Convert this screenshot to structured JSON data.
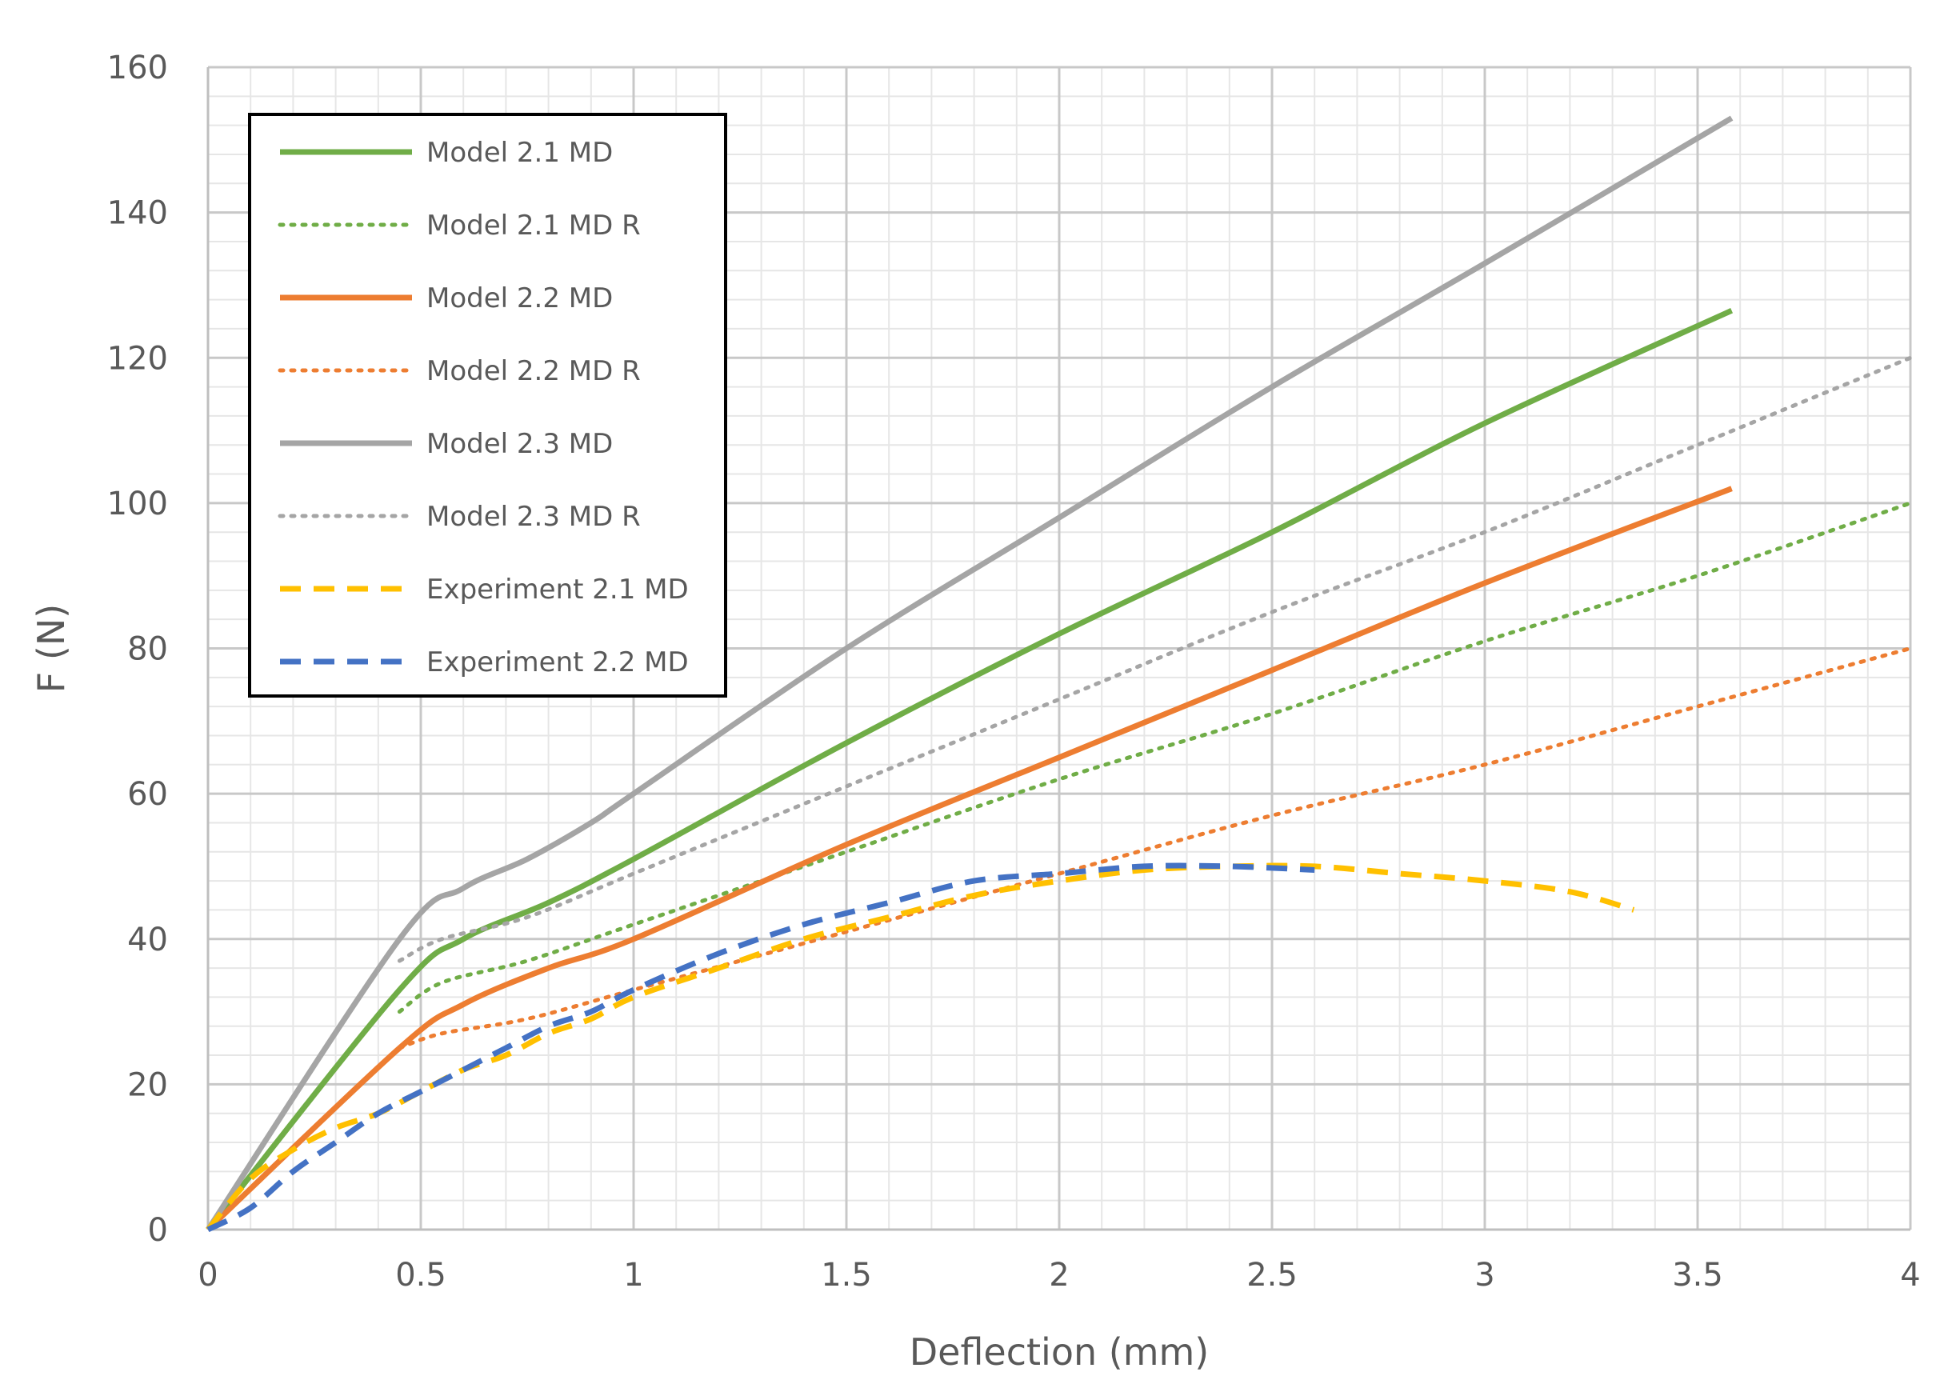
{
  "chart_data": {
    "type": "line",
    "title": "",
    "xlabel": "Deflection (mm)",
    "ylabel": "F (N)",
    "xlim": [
      0,
      4
    ],
    "ylim": [
      0,
      160
    ],
    "x_ticks": [
      0,
      0.5,
      1,
      1.5,
      2,
      2.5,
      3,
      3.5,
      4
    ],
    "x_tick_labels": [
      "0",
      "0.5",
      "1",
      "1.5",
      "2",
      "2.5",
      "3",
      "3.5",
      "4"
    ],
    "y_ticks": [
      0,
      20,
      40,
      60,
      80,
      100,
      120,
      140,
      160
    ],
    "y_tick_labels": [
      "0",
      "20",
      "40",
      "60",
      "80",
      "100",
      "120",
      "140",
      "160"
    ],
    "minor_x_step": 0.1,
    "minor_y_step": 4,
    "grid": true,
    "legend_position": "top-left",
    "series": [
      {
        "name": "Model 2.1 MD",
        "color": "#70ad47",
        "style": "solid",
        "x": [
          0,
          0.45,
          0.6,
          0.8,
          1.0,
          1.5,
          2.0,
          2.5,
          3.0,
          3.58
        ],
        "y": [
          0,
          33,
          40,
          45,
          51,
          67,
          82,
          96,
          111,
          126.5
        ]
      },
      {
        "name": "Model 2.1 MD R",
        "color": "#70ad47",
        "style": "dotted",
        "x": [
          0.45,
          0.55,
          0.75,
          1.0,
          1.5,
          2.0,
          2.5,
          3.0,
          3.5,
          4.0
        ],
        "y": [
          30,
          34,
          37,
          42,
          52,
          62,
          71,
          81,
          90,
          100
        ]
      },
      {
        "name": "Model 2.2 MD",
        "color": "#ed7d31",
        "style": "solid",
        "x": [
          0,
          0.45,
          0.6,
          0.8,
          1.0,
          1.5,
          2.0,
          2.5,
          3.0,
          3.58
        ],
        "y": [
          0,
          25,
          31,
          36,
          40,
          53,
          65,
          77,
          89,
          102
        ]
      },
      {
        "name": "Model 2.2 MD R",
        "color": "#ed7d31",
        "style": "dotted",
        "x": [
          0.45,
          0.55,
          0.75,
          1.0,
          1.5,
          2.0,
          2.5,
          3.0,
          3.5,
          4.0
        ],
        "y": [
          25,
          27,
          29,
          33,
          41,
          49,
          57,
          64,
          72,
          80
        ]
      },
      {
        "name": "Model 2.3 MD",
        "color": "#a5a5a5",
        "style": "solid",
        "x": [
          0,
          0.45,
          0.6,
          0.75,
          0.9,
          1.0,
          1.5,
          2.0,
          2.5,
          3.0,
          3.58
        ],
        "y": [
          0,
          40,
          47,
          51,
          56,
          60,
          80,
          98,
          116,
          133,
          153
        ]
      },
      {
        "name": "Model 2.3 MD R",
        "color": "#a5a5a5",
        "style": "dotted",
        "x": [
          0.45,
          0.55,
          0.75,
          1.0,
          1.5,
          2.0,
          2.5,
          3.0,
          3.5,
          4.0
        ],
        "y": [
          37,
          40,
          43,
          49,
          61,
          73,
          85,
          96,
          108,
          120
        ]
      },
      {
        "name": "Experiment 2.1 MD",
        "color": "#ffc000",
        "style": "dashed",
        "x": [
          0,
          0.1,
          0.2,
          0.3,
          0.4,
          0.5,
          0.6,
          0.7,
          0.8,
          0.9,
          1.0,
          1.2,
          1.4,
          1.6,
          1.8,
          2.0,
          2.2,
          2.4,
          2.6,
          2.8,
          3.0,
          3.2,
          3.35
        ],
        "y": [
          0,
          7,
          11,
          14,
          16,
          19,
          22,
          24,
          27,
          29,
          32,
          36,
          40,
          43,
          46,
          48,
          49.5,
          50,
          50,
          49,
          48,
          46.5,
          44
        ]
      },
      {
        "name": "Experiment 2.2 MD",
        "color": "#4472c4",
        "style": "dashed",
        "x": [
          0,
          0.1,
          0.2,
          0.3,
          0.4,
          0.5,
          0.6,
          0.7,
          0.8,
          0.9,
          1.0,
          1.2,
          1.4,
          1.6,
          1.8,
          2.0,
          2.2,
          2.4,
          2.6
        ],
        "y": [
          0,
          3,
          8,
          12,
          16,
          19,
          22,
          25,
          28,
          30,
          33,
          38,
          42,
          45,
          48,
          49,
          50,
          50,
          49.5
        ]
      }
    ]
  }
}
